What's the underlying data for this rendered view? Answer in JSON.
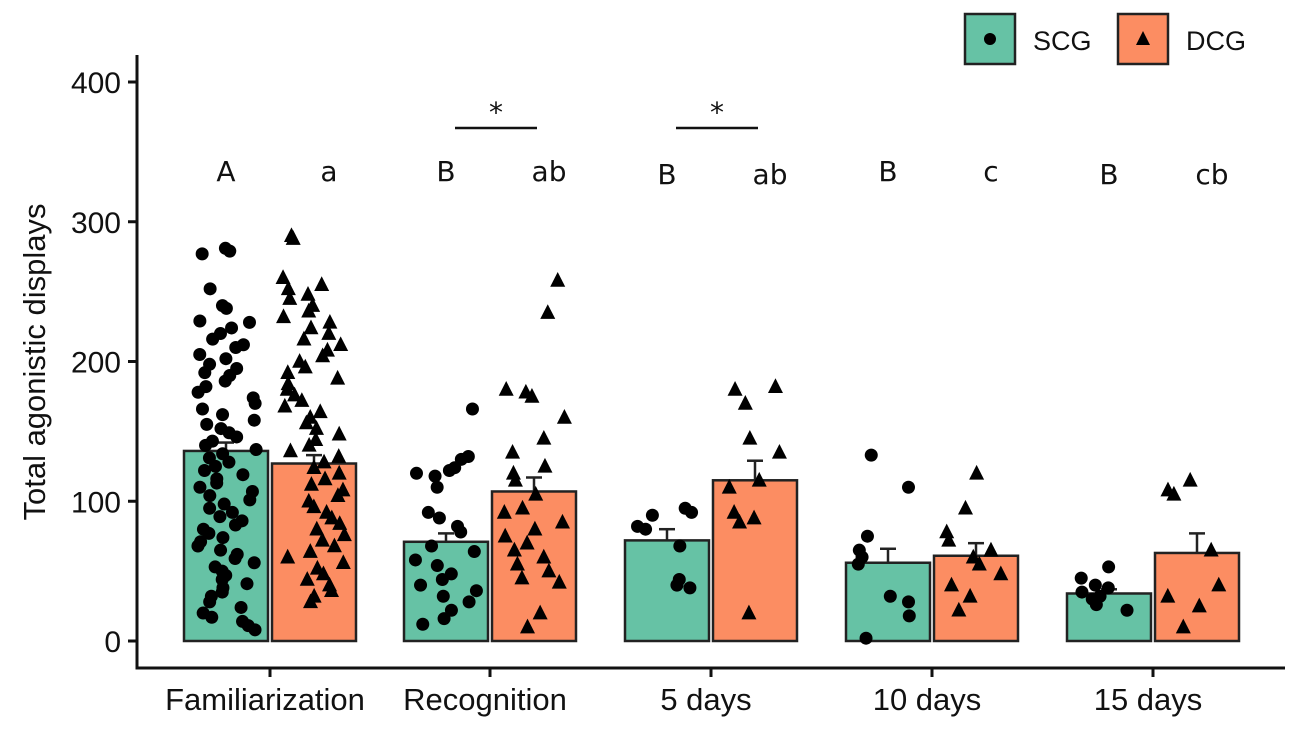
{
  "chart_data": {
    "type": "bar",
    "title": "",
    "xlabel": "",
    "ylabel": "Total agonistic displays",
    "ylim": [
      0,
      400
    ],
    "yticks": [
      0,
      100,
      200,
      300,
      400
    ],
    "categories": [
      "Familiarization",
      "Recognition",
      "5 days",
      "10 days",
      "15 days"
    ],
    "series": [
      {
        "name": "SCG",
        "marker": "circle",
        "color": "#66c2a5",
        "values": [
          136,
          71,
          72,
          56,
          34
        ],
        "errors": [
          6,
          6,
          8,
          10,
          3
        ],
        "points": [
          [
            281,
            279,
            277,
            252,
            240,
            238,
            229,
            228,
            224,
            220,
            216,
            212,
            210,
            205,
            202,
            198,
            195,
            192,
            190,
            186,
            182,
            178,
            174,
            170,
            166,
            162,
            158,
            155,
            152,
            149,
            146,
            143,
            140,
            137,
            134,
            131,
            128,
            125,
            122,
            119,
            116,
            113,
            110,
            107,
            104,
            101,
            98,
            95,
            92,
            89,
            86,
            83,
            80,
            77,
            74,
            71,
            68,
            65,
            62,
            59,
            56,
            53,
            50,
            47,
            44,
            41,
            38,
            35,
            32,
            28,
            24,
            20,
            17,
            14,
            11,
            8
          ],
          [
            166,
            132,
            130,
            124,
            122,
            120,
            118,
            110,
            92,
            88,
            82,
            78,
            68,
            64,
            58,
            54,
            48,
            44,
            40,
            36,
            32,
            28,
            22,
            16,
            12
          ],
          [
            95,
            92,
            90,
            82,
            80,
            68,
            44,
            40,
            38
          ],
          [
            133,
            110,
            75,
            65,
            60,
            55,
            32,
            28,
            18,
            2
          ],
          [
            53,
            45,
            40,
            38,
            35,
            32,
            30,
            26,
            22
          ]
        ]
      },
      {
        "name": "DCG",
        "marker": "triangle",
        "color": "#fc8d62",
        "values": [
          127,
          107,
          115,
          61,
          63
        ],
        "errors": [
          6,
          10,
          14,
          9,
          14
        ],
        "points": [
          [
            290,
            288,
            260,
            255,
            252,
            248,
            245,
            240,
            236,
            232,
            228,
            224,
            220,
            216,
            212,
            208,
            204,
            200,
            196,
            192,
            188,
            184,
            180,
            176,
            172,
            168,
            164,
            160,
            156,
            152,
            148,
            144,
            140,
            136,
            132,
            128,
            124,
            120,
            116,
            112,
            108,
            104,
            100,
            96,
            92,
            88,
            84,
            80,
            76,
            72,
            68,
            64,
            60,
            56,
            52,
            48,
            44,
            40,
            36,
            32,
            28
          ],
          [
            258,
            235,
            180,
            178,
            175,
            160,
            145,
            135,
            125,
            120,
            115,
            105,
            95,
            92,
            85,
            80,
            75,
            70,
            65,
            60,
            55,
            50,
            45,
            42,
            20,
            10
          ],
          [
            182,
            180,
            170,
            145,
            135,
            115,
            110,
            92,
            88,
            85,
            20
          ],
          [
            120,
            95,
            78,
            72,
            65,
            60,
            55,
            48,
            40,
            32,
            22
          ],
          [
            115,
            108,
            105,
            65,
            40,
            32,
            25,
            10
          ]
        ]
      }
    ],
    "group_letters": {
      "SCG": [
        "A",
        "B",
        "B",
        "B",
        "B"
      ],
      "DCG": [
        "a",
        "ab",
        "ab",
        "c",
        "cb"
      ]
    },
    "significance": [
      {
        "category": "Recognition",
        "label": "*"
      },
      {
        "category": "5 days",
        "label": "*"
      }
    ],
    "legend": {
      "position": "top-right",
      "entries": [
        "SCG",
        "DCG"
      ]
    }
  }
}
